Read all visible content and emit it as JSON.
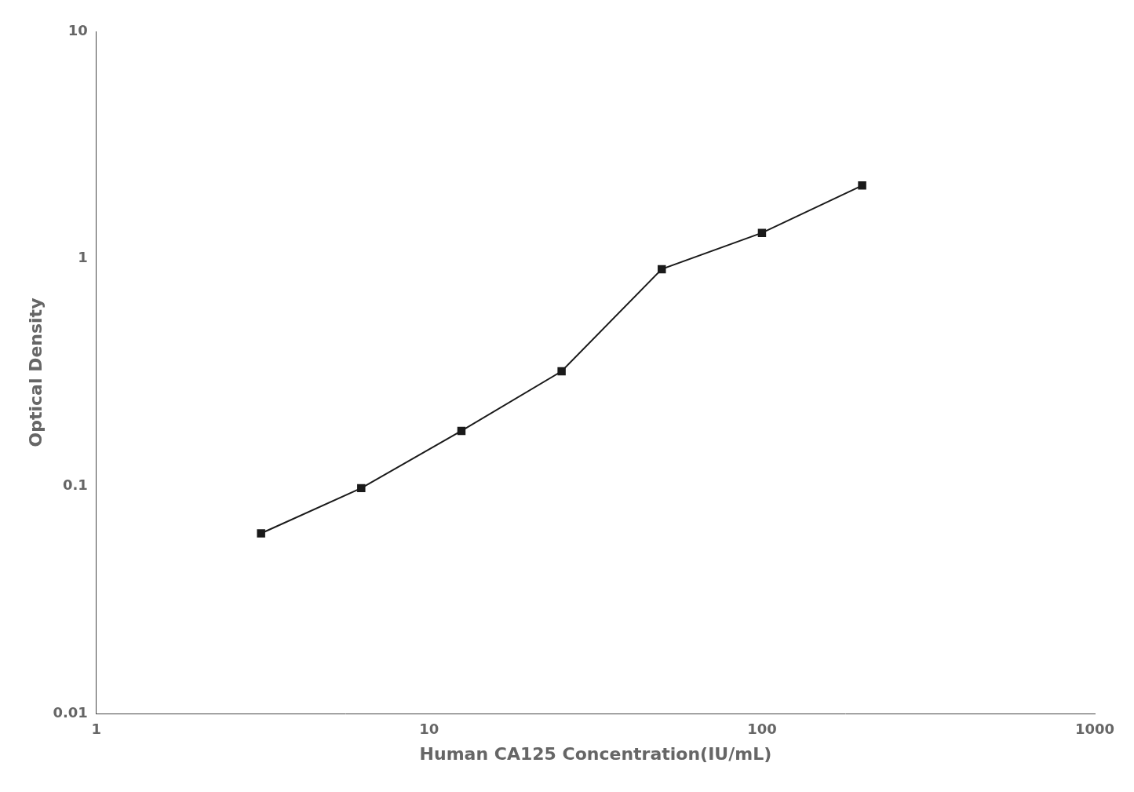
{
  "chart_data": {
    "type": "line",
    "x": [
      3.125,
      6.25,
      12.5,
      25,
      50,
      100,
      200
    ],
    "values": [
      0.062,
      0.098,
      0.175,
      0.32,
      0.9,
      1.3,
      2.1
    ],
    "xlabel": "Human CA125 Concentration(IU/mL)",
    "ylabel": "Optical Density",
    "xlim": [
      1,
      1000
    ],
    "ylim": [
      0.01,
      10
    ],
    "xticks": [
      1,
      10,
      100,
      1000
    ],
    "yticks": [
      0.01,
      0.1,
      1,
      10
    ],
    "log": true,
    "grid": false,
    "color": "#1a1a1a",
    "marker": "square"
  }
}
